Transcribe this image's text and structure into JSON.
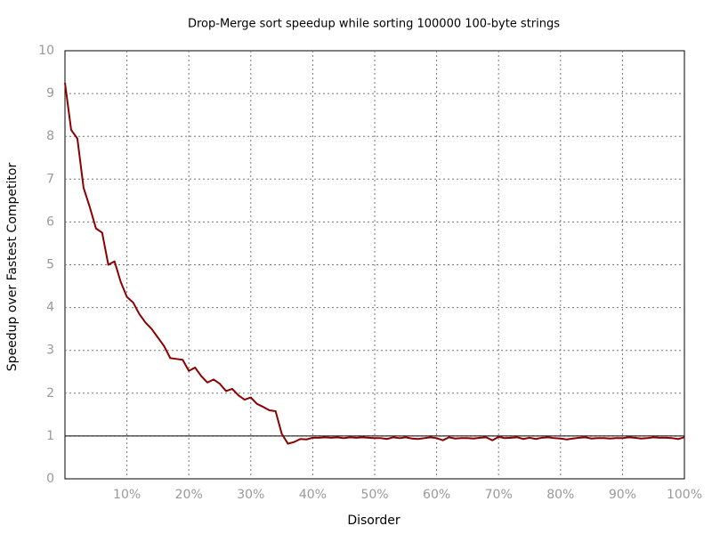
{
  "chart_data": {
    "type": "line",
    "title": "Drop-Merge sort speedup while sorting 100000 100-byte strings",
    "x_label": "Disorder",
    "y_label": "Speedup over Fastest Competitor",
    "x": [
      0,
      1,
      2,
      3,
      4,
      5,
      6,
      7,
      8,
      9,
      10,
      11,
      12,
      13,
      14,
      15,
      16,
      17,
      18,
      19,
      20,
      21,
      22,
      23,
      24,
      25,
      26,
      27,
      28,
      29,
      30,
      31,
      32,
      33,
      34,
      35,
      36,
      37,
      38,
      39,
      40,
      41,
      42,
      43,
      44,
      45,
      46,
      47,
      48,
      49,
      50,
      51,
      52,
      53,
      54,
      55,
      56,
      57,
      58,
      59,
      60,
      61,
      62,
      63,
      64,
      65,
      66,
      67,
      68,
      69,
      70,
      71,
      72,
      73,
      74,
      75,
      76,
      77,
      78,
      79,
      80,
      81,
      82,
      83,
      84,
      85,
      86,
      87,
      88,
      89,
      90,
      91,
      92,
      93,
      94,
      95,
      96,
      97,
      98,
      99,
      100
    ],
    "series": [
      {
        "name": "Drop-Merge sort",
        "color": "#8b0000",
        "values": [
          9.25,
          8.15,
          7.95,
          6.8,
          6.35,
          5.85,
          5.75,
          5.0,
          5.08,
          4.6,
          4.25,
          4.12,
          3.85,
          3.65,
          3.5,
          3.3,
          3.1,
          2.82,
          2.8,
          2.78,
          2.52,
          2.6,
          2.4,
          2.25,
          2.32,
          2.22,
          2.05,
          2.1,
          1.95,
          1.85,
          1.9,
          1.75,
          1.68,
          1.6,
          1.58,
          1.05,
          0.82,
          0.86,
          0.93,
          0.92,
          0.96,
          0.96,
          0.97,
          0.96,
          0.97,
          0.95,
          0.97,
          0.96,
          0.97,
          0.96,
          0.95,
          0.95,
          0.93,
          0.97,
          0.95,
          0.97,
          0.94,
          0.93,
          0.95,
          0.97,
          0.95,
          0.9,
          0.97,
          0.94,
          0.95,
          0.95,
          0.94,
          0.96,
          0.97,
          0.9,
          0.98,
          0.95,
          0.96,
          0.97,
          0.93,
          0.96,
          0.93,
          0.96,
          0.97,
          0.95,
          0.94,
          0.92,
          0.94,
          0.96,
          0.97,
          0.94,
          0.95,
          0.95,
          0.94,
          0.95,
          0.95,
          0.97,
          0.96,
          0.94,
          0.95,
          0.97,
          0.96,
          0.96,
          0.95,
          0.93,
          0.97
        ]
      }
    ],
    "hline": 1,
    "xlim": [
      0,
      100
    ],
    "ylim": [
      0,
      10
    ],
    "xticks": [
      {
        "value": 10,
        "label": "10%"
      },
      {
        "value": 20,
        "label": "20%"
      },
      {
        "value": 30,
        "label": "30%"
      },
      {
        "value": 40,
        "label": "40%"
      },
      {
        "value": 50,
        "label": "50%"
      },
      {
        "value": 60,
        "label": "60%"
      },
      {
        "value": 70,
        "label": "70%"
      },
      {
        "value": 80,
        "label": "80%"
      },
      {
        "value": 90,
        "label": "90%"
      },
      {
        "value": 100,
        "label": "100%"
      }
    ],
    "yticks": [
      0,
      1,
      2,
      3,
      4,
      5,
      6,
      7,
      8,
      9,
      10
    ],
    "grid": true
  }
}
